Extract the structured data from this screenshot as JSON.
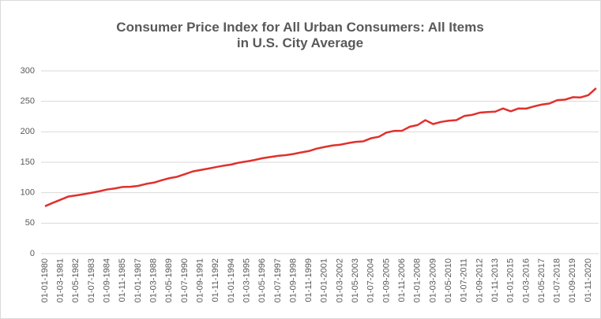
{
  "chart_data": {
    "type": "line",
    "title": [
      "Consumer Price Index for All Urban Consumers: All Items",
      "in U.S. City Average"
    ],
    "categories": [
      "01-01-1980",
      null,
      "01-03-1981",
      null,
      "01-05-1982",
      null,
      "01-07-1983",
      null,
      "01-09-1984",
      null,
      "01-11-1985",
      null,
      "01-01-1987",
      null,
      "01-03-1988",
      null,
      "01-05-1989",
      null,
      "01-07-1990",
      null,
      "01-09-1991",
      null,
      "01-11-1992",
      null,
      "01-01-1994",
      null,
      "01-03-1995",
      null,
      "01-05-1996",
      null,
      "01-07-1997",
      null,
      "01-09-1998",
      null,
      "01-11-1999",
      null,
      "01-01-2001",
      null,
      "01-03-2002",
      null,
      "01-05-2003",
      null,
      "01-07-2004",
      null,
      "01-09-2005",
      null,
      "01-11-2006",
      null,
      "01-01-2008",
      null,
      "01-03-2009",
      null,
      "01-05-2010",
      null,
      "01-07-2011",
      null,
      "01-09-2012",
      null,
      "01-11-2013",
      null,
      "01-01-2015",
      null,
      "01-03-2016",
      null,
      "01-05-2017",
      null,
      "01-07-2018",
      null,
      "01-09-2019",
      null,
      "01-11-2020",
      null
    ],
    "values": [
      77.8,
      83.3,
      88.5,
      93.7,
      95.5,
      97.6,
      99.9,
      102.4,
      105.3,
      107.0,
      109.5,
      109.7,
      111.2,
      114.4,
      116.5,
      120.3,
      123.8,
      126.1,
      130.4,
      134.8,
      137.2,
      139.5,
      142.0,
      144.4,
      146.3,
      149.4,
      151.4,
      153.7,
      156.6,
      158.6,
      160.5,
      161.6,
      163.6,
      166.2,
      168.4,
      172.4,
      175.1,
      177.5,
      178.8,
      181.3,
      183.5,
      184.3,
      189.4,
      191.8,
      198.8,
      201.5,
      201.8,
      208.4,
      211.1,
      219.1,
      212.7,
      216.2,
      218.2,
      219.2,
      225.9,
      227.7,
      231.4,
      232.5,
      233.1,
      238.3,
      233.7,
      238.3,
      238.1,
      241.7,
      244.7,
      246.5,
      252.0,
      252.8,
      256.8,
      256.4,
      260.2,
      271.7
    ],
    "color": "#e0302c",
    "ylim": [
      0,
      300
    ],
    "yticks": [
      0,
      50,
      100,
      150,
      200,
      250,
      300
    ],
    "grid": true
  }
}
